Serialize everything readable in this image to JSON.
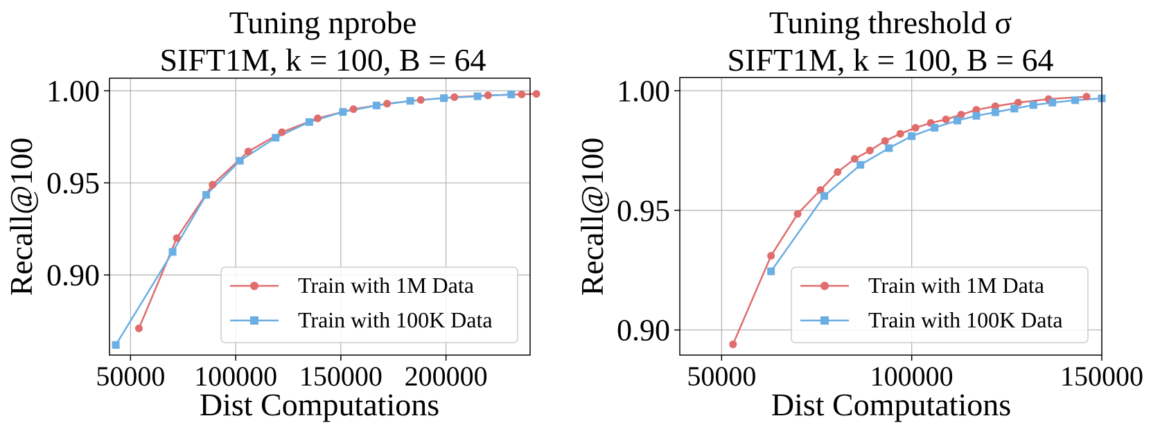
{
  "chart_data": [
    {
      "type": "line",
      "title": "Tuning nprobe",
      "subtitle": "SIFT1M, k = 100, B = 64",
      "xlabel": "Dist Computations",
      "ylabel": "Recall@100",
      "xlim": [
        40000,
        240000
      ],
      "ylim": [
        0.8565,
        1.0068
      ],
      "xticks": [
        50000,
        100000,
        150000,
        200000
      ],
      "xtick_labels": [
        "50000",
        "100000",
        "150000",
        "200000"
      ],
      "yticks": [
        0.9,
        0.95,
        1.0
      ],
      "ytick_labels": [
        "0.90",
        "0.95",
        "1.00"
      ],
      "grid": true,
      "legend_position": "lower-right",
      "series": [
        {
          "name": "Train with 1M Data",
          "color": "#e06c6c",
          "marker": "circle",
          "x": [
            54000,
            72000,
            89000,
            106000,
            122000,
            139000,
            156000,
            172000,
            188000,
            204000,
            220000,
            236000,
            243000
          ],
          "y": [
            0.871,
            0.92,
            0.949,
            0.967,
            0.9775,
            0.985,
            0.99,
            0.993,
            0.995,
            0.9965,
            0.9975,
            0.998,
            0.9983
          ]
        },
        {
          "name": "Train with 100K Data",
          "color": "#6aaee3",
          "marker": "square",
          "x": [
            43000,
            70000,
            86000,
            102000,
            119000,
            135000,
            151000,
            167000,
            183000,
            199000,
            215000,
            231000
          ],
          "y": [
            0.862,
            0.9125,
            0.9435,
            0.962,
            0.9745,
            0.983,
            0.9885,
            0.992,
            0.9945,
            0.996,
            0.997,
            0.998
          ]
        }
      ]
    },
    {
      "type": "line",
      "title": "Tuning threshold σ",
      "subtitle": "SIFT1M, k = 100, B = 64",
      "xlabel": "Dist Computations",
      "ylabel": "Recall@100",
      "xlim": [
        39000,
        150000
      ],
      "ylim": [
        0.8895,
        1.0055
      ],
      "xticks": [
        50000,
        100000,
        150000
      ],
      "xtick_labels": [
        "50000",
        "100000",
        "150000"
      ],
      "yticks": [
        0.9,
        0.95,
        1.0
      ],
      "ytick_labels": [
        "0.90",
        "0.95",
        "1.00"
      ],
      "grid": true,
      "legend_position": "lower-right",
      "series": [
        {
          "name": "Train with 1M Data",
          "color": "#e06c6c",
          "marker": "circle",
          "x": [
            53000,
            63000,
            70000,
            76000,
            80500,
            85000,
            89000,
            93000,
            97000,
            101000,
            105000,
            109000,
            113000,
            117000,
            122000,
            128000,
            136000,
            146000
          ],
          "y": [
            0.894,
            0.931,
            0.9485,
            0.9585,
            0.966,
            0.9715,
            0.975,
            0.979,
            0.982,
            0.9845,
            0.9865,
            0.988,
            0.99,
            0.992,
            0.9935,
            0.995,
            0.9965,
            0.9975
          ]
        },
        {
          "name": "Train with 100K Data",
          "color": "#6aaee3",
          "marker": "square",
          "x": [
            63000,
            77000,
            86500,
            94000,
            100000,
            106000,
            112000,
            117000,
            122000,
            127000,
            132000,
            137000,
            143000,
            150000
          ],
          "y": [
            0.9245,
            0.956,
            0.969,
            0.976,
            0.981,
            0.9845,
            0.9875,
            0.9895,
            0.991,
            0.9925,
            0.994,
            0.995,
            0.996,
            0.9968
          ]
        }
      ]
    }
  ]
}
